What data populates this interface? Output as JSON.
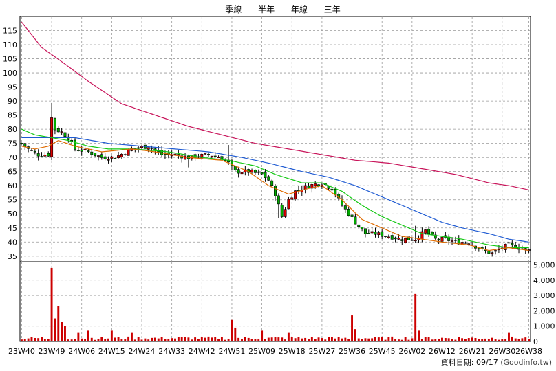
{
  "chart_data": {
    "type": "candlestick",
    "legend": [
      {
        "name": "季線",
        "color": "#e06b00"
      },
      {
        "name": "半年",
        "color": "#14c814"
      },
      {
        "name": "年線",
        "color": "#1e5ad2"
      },
      {
        "name": "三年",
        "color": "#c8145a"
      }
    ],
    "price_axis": {
      "ylim": [
        33,
        120
      ],
      "ticks": [
        35,
        40,
        45,
        50,
        55,
        60,
        65,
        70,
        75,
        80,
        85,
        90,
        95,
        100,
        105,
        110,
        115
      ]
    },
    "volume_axis": {
      "ylim": [
        0,
        5200
      ],
      "ticks": [
        0,
        1000,
        2000,
        3000,
        4000,
        5000
      ],
      "tick_labels": [
        "0",
        "1,000",
        "2,000",
        "3,000",
        "4,000",
        "5,000"
      ]
    },
    "x_labels": [
      "23W40",
      "23W49",
      "24W06",
      "24W15",
      "24W24",
      "24W33",
      "24W42",
      "24W51",
      "25W09",
      "25W18",
      "25W27",
      "25W36",
      "25W45",
      "26W02",
      "26W12",
      "26W21",
      "26W30",
      "26W38"
    ],
    "x_label_index": [
      0,
      9,
      18,
      27,
      36,
      45,
      54,
      63,
      72,
      81,
      90,
      99,
      108,
      117,
      126,
      135,
      144,
      152
    ],
    "weeks": 153,
    "close_anchors": [
      [
        0,
        75
      ],
      [
        2,
        73
      ],
      [
        5,
        71
      ],
      [
        8,
        71
      ],
      [
        9,
        84
      ],
      [
        10,
        80
      ],
      [
        12,
        79
      ],
      [
        14,
        77
      ],
      [
        16,
        73
      ],
      [
        20,
        72
      ],
      [
        24,
        70
      ],
      [
        28,
        70
      ],
      [
        33,
        73
      ],
      [
        38,
        74
      ],
      [
        42,
        71
      ],
      [
        46,
        71
      ],
      [
        50,
        70
      ],
      [
        56,
        71
      ],
      [
        60,
        70
      ],
      [
        62,
        68
      ],
      [
        64,
        65
      ],
      [
        68,
        65
      ],
      [
        72,
        64
      ],
      [
        74,
        62
      ],
      [
        76,
        57
      ],
      [
        78,
        49
      ],
      [
        80,
        55
      ],
      [
        82,
        58
      ],
      [
        86,
        60
      ],
      [
        90,
        61
      ],
      [
        93,
        59
      ],
      [
        96,
        53
      ],
      [
        100,
        47
      ],
      [
        103,
        43
      ],
      [
        106,
        43
      ],
      [
        110,
        42
      ],
      [
        114,
        41
      ],
      [
        118,
        41
      ],
      [
        121,
        44
      ],
      [
        124,
        41
      ],
      [
        127,
        41
      ],
      [
        130,
        40
      ],
      [
        134,
        40
      ],
      [
        138,
        37
      ],
      [
        141,
        36
      ],
      [
        144,
        38
      ],
      [
        146,
        39
      ],
      [
        149,
        38
      ],
      [
        152,
        37
      ]
    ],
    "ma_quarter": [
      [
        0,
        74
      ],
      [
        4,
        73
      ],
      [
        8,
        74
      ],
      [
        11,
        76
      ],
      [
        16,
        74
      ],
      [
        24,
        72
      ],
      [
        33,
        73
      ],
      [
        40,
        72
      ],
      [
        50,
        70
      ],
      [
        60,
        69
      ],
      [
        68,
        65
      ],
      [
        74,
        60
      ],
      [
        80,
        57
      ],
      [
        86,
        59
      ],
      [
        90,
        60
      ],
      [
        96,
        55
      ],
      [
        102,
        48
      ],
      [
        108,
        45
      ],
      [
        114,
        42
      ],
      [
        120,
        41
      ],
      [
        126,
        40
      ],
      [
        134,
        39
      ],
      [
        140,
        37
      ],
      [
        146,
        38
      ],
      [
        152,
        37
      ]
    ],
    "ma_half": [
      [
        0,
        80
      ],
      [
        4,
        78
      ],
      [
        9,
        77
      ],
      [
        14,
        76
      ],
      [
        20,
        74
      ],
      [
        26,
        73
      ],
      [
        34,
        73
      ],
      [
        44,
        72
      ],
      [
        54,
        70
      ],
      [
        62,
        69
      ],
      [
        70,
        67
      ],
      [
        76,
        64
      ],
      [
        84,
        61
      ],
      [
        90,
        61
      ],
      [
        96,
        58
      ],
      [
        102,
        53
      ],
      [
        108,
        49
      ],
      [
        114,
        46
      ],
      [
        120,
        43
      ],
      [
        126,
        42
      ],
      [
        132,
        41
      ],
      [
        140,
        39
      ],
      [
        146,
        38
      ],
      [
        152,
        38
      ]
    ],
    "ma_year": [
      [
        0,
        77
      ],
      [
        8,
        77
      ],
      [
        16,
        77
      ],
      [
        26,
        75
      ],
      [
        36,
        74
      ],
      [
        46,
        73
      ],
      [
        56,
        72
      ],
      [
        66,
        70
      ],
      [
        74,
        68
      ],
      [
        84,
        65
      ],
      [
        92,
        63
      ],
      [
        100,
        60
      ],
      [
        108,
        56
      ],
      [
        114,
        53
      ],
      [
        120,
        50
      ],
      [
        126,
        47
      ],
      [
        132,
        45
      ],
      [
        140,
        43
      ],
      [
        146,
        41
      ],
      [
        152,
        40
      ]
    ],
    "ma_three_year": [
      [
        0,
        118
      ],
      [
        6,
        109
      ],
      [
        12,
        104
      ],
      [
        20,
        97
      ],
      [
        30,
        89
      ],
      [
        40,
        85
      ],
      [
        50,
        81
      ],
      [
        60,
        78
      ],
      [
        70,
        75
      ],
      [
        80,
        73
      ],
      [
        90,
        71
      ],
      [
        100,
        69
      ],
      [
        110,
        68
      ],
      [
        120,
        66
      ],
      [
        130,
        64
      ],
      [
        140,
        61
      ],
      [
        146,
        60
      ],
      [
        152,
        58.5
      ]
    ],
    "volume_spikes": [
      [
        9,
        4800
      ],
      [
        10,
        1500
      ],
      [
        11,
        2300
      ],
      [
        12,
        1300
      ],
      [
        13,
        1000
      ],
      [
        17,
        600
      ],
      [
        20,
        700
      ],
      [
        27,
        700
      ],
      [
        33,
        600
      ],
      [
        63,
        1400
      ],
      [
        64,
        900
      ],
      [
        72,
        700
      ],
      [
        80,
        600
      ],
      [
        99,
        1700
      ],
      [
        100,
        800
      ],
      [
        118,
        3100
      ],
      [
        119,
        700
      ],
      [
        146,
        600
      ]
    ],
    "volume_base": 250
  },
  "source": {
    "label": "資料日期: 09/17",
    "brand": "(Goodinfo.tw)"
  }
}
